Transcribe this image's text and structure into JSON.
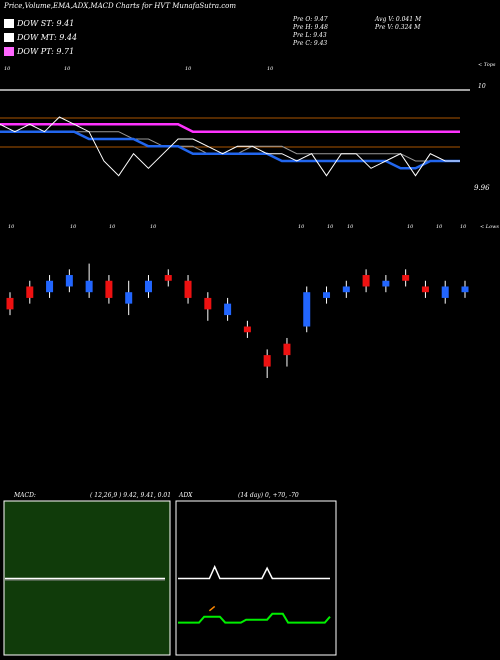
{
  "header": {
    "title": "Price,Volume,EMA,ADX,MACD Charts for HVT",
    "site": "MunafaSutra.com",
    "dow": [
      {
        "label": "DOW ST: 9.41",
        "color": "#ffffff"
      },
      {
        "label": "DOW MT: 9.44",
        "color": "#ffffff"
      },
      {
        "label": "DOW PT: 9.71",
        "color": "#ff66ff"
      }
    ],
    "ohlc": [
      "Pre O: 9.47",
      "Pre H: 9.48",
      "Pre L: 9.43",
      "Pre C: 9.43"
    ],
    "avg_volume": "Avg V: 0.041 M",
    "pre_volume": "Pre V: 0.324 M"
  },
  "price_panel": {
    "top_label": "< Tops",
    "top_level": "10",
    "ticks": [
      "10",
      "10",
      "10",
      "10"
    ],
    "last_price": "9.96"
  },
  "candle_panel": {
    "ticks": [
      "10",
      "10",
      "10",
      "10",
      "10",
      "10",
      "10",
      "10",
      "10",
      "10"
    ],
    "right_label": "< Lows"
  },
  "macd": {
    "title": "MACD:",
    "params": "( 12,26,9 ) 9.42, 9.41, 0.01",
    "bg_color": "#103b0a"
  },
  "adx": {
    "title": "ADX",
    "params": "(14 day) 0, +70, -70",
    "bg_color": "#000000"
  },
  "chart_data": [
    {
      "type": "line",
      "title": "Price,Volume,EMA,ADX,MACD Charts for HVT",
      "ylim": [
        9.9,
        10.05
      ],
      "series": [
        {
          "name": "DOW ST: 9.41",
          "color": "#ffffff",
          "values": [
            10.0,
            10.0,
            10.0,
            10.0,
            10.0,
            10.0,
            10.0,
            10.0,
            10.0,
            9.99,
            9.99,
            9.98,
            9.98,
            9.98,
            9.97,
            9.97,
            9.97,
            9.98,
            9.98,
            9.98,
            9.97,
            9.97,
            9.97,
            9.97,
            9.97,
            9.97,
            9.97,
            9.97,
            9.96,
            9.96,
            9.96,
            9.96
          ]
        },
        {
          "name": "DOW MT: 9.44",
          "color": "#2266ee",
          "values": [
            10.0,
            10.0,
            10.0,
            10.0,
            10.0,
            10.0,
            9.99,
            9.99,
            9.99,
            9.99,
            9.98,
            9.98,
            9.98,
            9.97,
            9.97,
            9.97,
            9.97,
            9.97,
            9.97,
            9.96,
            9.96,
            9.96,
            9.96,
            9.96,
            9.96,
            9.96,
            9.96,
            9.95,
            9.95,
            9.96,
            9.96,
            9.96
          ]
        },
        {
          "name": "DOW PT: 9.71",
          "color": "#ff33ff",
          "values": [
            10.01,
            10.01,
            10.01,
            10.01,
            10.01,
            10.01,
            10.01,
            10.01,
            10.01,
            10.01,
            10.01,
            10.01,
            10.01,
            10.0,
            10.0,
            10.0,
            10.0,
            10.0,
            10.0,
            10.0,
            10.0,
            10.0,
            10.0,
            10.0,
            10.0,
            10.0,
            10.0,
            10.0,
            10.0,
            10.0,
            10.0,
            10.0
          ]
        }
      ],
      "price": [
        10.01,
        10.0,
        10.01,
        10.0,
        10.02,
        10.01,
        10.0,
        9.96,
        9.94,
        9.97,
        9.95,
        9.97,
        9.99,
        9.99,
        9.98,
        9.97,
        9.98,
        9.98,
        9.97,
        9.97,
        9.96,
        9.97,
        9.94,
        9.97,
        9.97,
        9.95,
        9.96,
        9.97,
        9.94,
        9.97,
        9.96,
        9.96
      ]
    },
    {
      "type": "candlestick",
      "ylim": [
        9.8,
        10.05
      ],
      "candles": [
        {
          "o": 9.94,
          "c": 9.92,
          "h": 9.95,
          "l": 9.91
        },
        {
          "o": 9.96,
          "c": 9.94,
          "h": 9.97,
          "l": 9.93
        },
        {
          "o": 9.95,
          "c": 9.97,
          "h": 9.98,
          "l": 9.94
        },
        {
          "o": 9.96,
          "c": 9.98,
          "h": 9.99,
          "l": 9.95
        },
        {
          "o": 9.95,
          "c": 9.97,
          "h": 10.0,
          "l": 9.94
        },
        {
          "o": 9.97,
          "c": 9.94,
          "h": 9.98,
          "l": 9.93
        },
        {
          "o": 9.93,
          "c": 9.95,
          "h": 9.97,
          "l": 9.91
        },
        {
          "o": 9.95,
          "c": 9.97,
          "h": 9.98,
          "l": 9.94
        },
        {
          "o": 9.98,
          "c": 9.97,
          "h": 9.99,
          "l": 9.96
        },
        {
          "o": 9.97,
          "c": 9.94,
          "h": 9.98,
          "l": 9.93
        },
        {
          "o": 9.94,
          "c": 9.92,
          "h": 9.95,
          "l": 9.9
        },
        {
          "o": 9.91,
          "c": 9.93,
          "h": 9.94,
          "l": 9.9
        },
        {
          "o": 9.89,
          "c": 9.88,
          "h": 9.9,
          "l": 9.87
        },
        {
          "o": 9.84,
          "c": 9.82,
          "h": 9.85,
          "l": 9.8
        },
        {
          "o": 9.86,
          "c": 9.84,
          "h": 9.87,
          "l": 9.82
        },
        {
          "o": 9.89,
          "c": 9.95,
          "h": 9.96,
          "l": 9.88
        },
        {
          "o": 9.94,
          "c": 9.95,
          "h": 9.96,
          "l": 9.93
        },
        {
          "o": 9.95,
          "c": 9.96,
          "h": 9.97,
          "l": 9.94
        },
        {
          "o": 9.98,
          "c": 9.96,
          "h": 9.99,
          "l": 9.95
        },
        {
          "o": 9.96,
          "c": 9.97,
          "h": 9.98,
          "l": 9.95
        },
        {
          "o": 9.98,
          "c": 9.97,
          "h": 9.99,
          "l": 9.96
        },
        {
          "o": 9.96,
          "c": 9.95,
          "h": 9.97,
          "l": 9.94
        },
        {
          "o": 9.94,
          "c": 9.96,
          "h": 9.97,
          "l": 9.93
        },
        {
          "o": 9.95,
          "c": 9.96,
          "h": 9.97,
          "l": 9.94
        }
      ]
    },
    {
      "type": "line",
      "title": "MACD:",
      "ylim": [
        -1,
        1
      ],
      "series": [
        {
          "color": "#ffffff",
          "values": [
            0,
            0,
            0,
            0,
            0,
            0,
            0,
            0,
            0,
            0,
            0,
            0,
            0,
            0,
            0,
            0,
            0,
            0,
            0,
            0,
            0,
            0,
            0,
            0,
            0,
            0,
            0,
            0,
            0,
            0
          ]
        }
      ]
    },
    {
      "type": "line",
      "title": "ADX",
      "ylim": [
        0,
        100
      ],
      "series": [
        {
          "color": "#ffffff",
          "values": [
            50,
            50,
            50,
            50,
            50,
            50,
            50,
            58,
            50,
            50,
            50,
            50,
            50,
            50,
            50,
            50,
            50,
            57,
            50,
            50,
            50,
            50,
            50,
            50,
            50,
            50,
            50,
            50,
            50,
            50
          ]
        },
        {
          "color": "#00ee00",
          "values": [
            20,
            20,
            20,
            20,
            20,
            24,
            24,
            24,
            24,
            20,
            20,
            20,
            20,
            22,
            22,
            22,
            22,
            22,
            26,
            26,
            26,
            20,
            20,
            20,
            20,
            20,
            20,
            20,
            20,
            24
          ]
        },
        {
          "color": "#ff8800",
          "values": [
            null,
            null,
            null,
            null,
            null,
            null,
            28,
            31,
            null,
            null,
            null,
            null,
            null,
            null,
            null,
            null,
            null,
            null,
            null,
            null,
            null,
            null,
            null,
            null,
            null,
            null,
            null,
            null,
            null,
            null
          ]
        }
      ]
    }
  ]
}
